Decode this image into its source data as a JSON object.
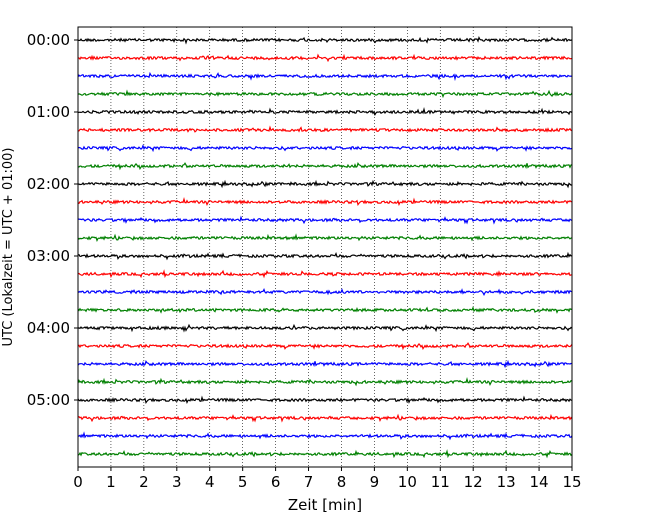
{
  "chart_data": {
    "type": "line",
    "title": "",
    "xlabel": "Zeit  [min]",
    "ylabel": "UTC (Lokalzeit = UTC + 01:00)",
    "xlim": [
      0,
      15
    ],
    "x_ticks": [
      "0",
      "1",
      "2",
      "3",
      "4",
      "5",
      "6",
      "7",
      "8",
      "9",
      "10",
      "11",
      "12",
      "13",
      "14",
      "15"
    ],
    "y_ticks": [
      "00:00",
      "01:00",
      "02:00",
      "03:00",
      "04:00",
      "05:00"
    ],
    "grid": "x dotted",
    "trace_interval_minutes": 15,
    "trace_colors": [
      "#000000",
      "#ff0000",
      "#0000ff",
      "#008000"
    ],
    "series": [
      {
        "start": "00:00",
        "color": "#000000"
      },
      {
        "start": "00:15",
        "color": "#ff0000"
      },
      {
        "start": "00:30",
        "color": "#0000ff"
      },
      {
        "start": "00:45",
        "color": "#008000"
      },
      {
        "start": "01:00",
        "color": "#000000"
      },
      {
        "start": "01:15",
        "color": "#ff0000"
      },
      {
        "start": "01:30",
        "color": "#0000ff"
      },
      {
        "start": "01:45",
        "color": "#008000"
      },
      {
        "start": "02:00",
        "color": "#000000"
      },
      {
        "start": "02:15",
        "color": "#ff0000"
      },
      {
        "start": "02:30",
        "color": "#0000ff"
      },
      {
        "start": "02:45",
        "color": "#008000"
      },
      {
        "start": "03:00",
        "color": "#000000"
      },
      {
        "start": "03:15",
        "color": "#ff0000"
      },
      {
        "start": "03:30",
        "color": "#0000ff"
      },
      {
        "start": "03:45",
        "color": "#008000"
      },
      {
        "start": "04:00",
        "color": "#000000"
      },
      {
        "start": "04:15",
        "color": "#ff0000"
      },
      {
        "start": "04:30",
        "color": "#0000ff"
      },
      {
        "start": "04:45",
        "color": "#008000"
      },
      {
        "start": "05:00",
        "color": "#000000"
      },
      {
        "start": "05:15",
        "color": "#ff0000"
      },
      {
        "start": "05:30",
        "color": "#0000ff"
      },
      {
        "start": "05:45",
        "color": "#008000"
      }
    ]
  }
}
